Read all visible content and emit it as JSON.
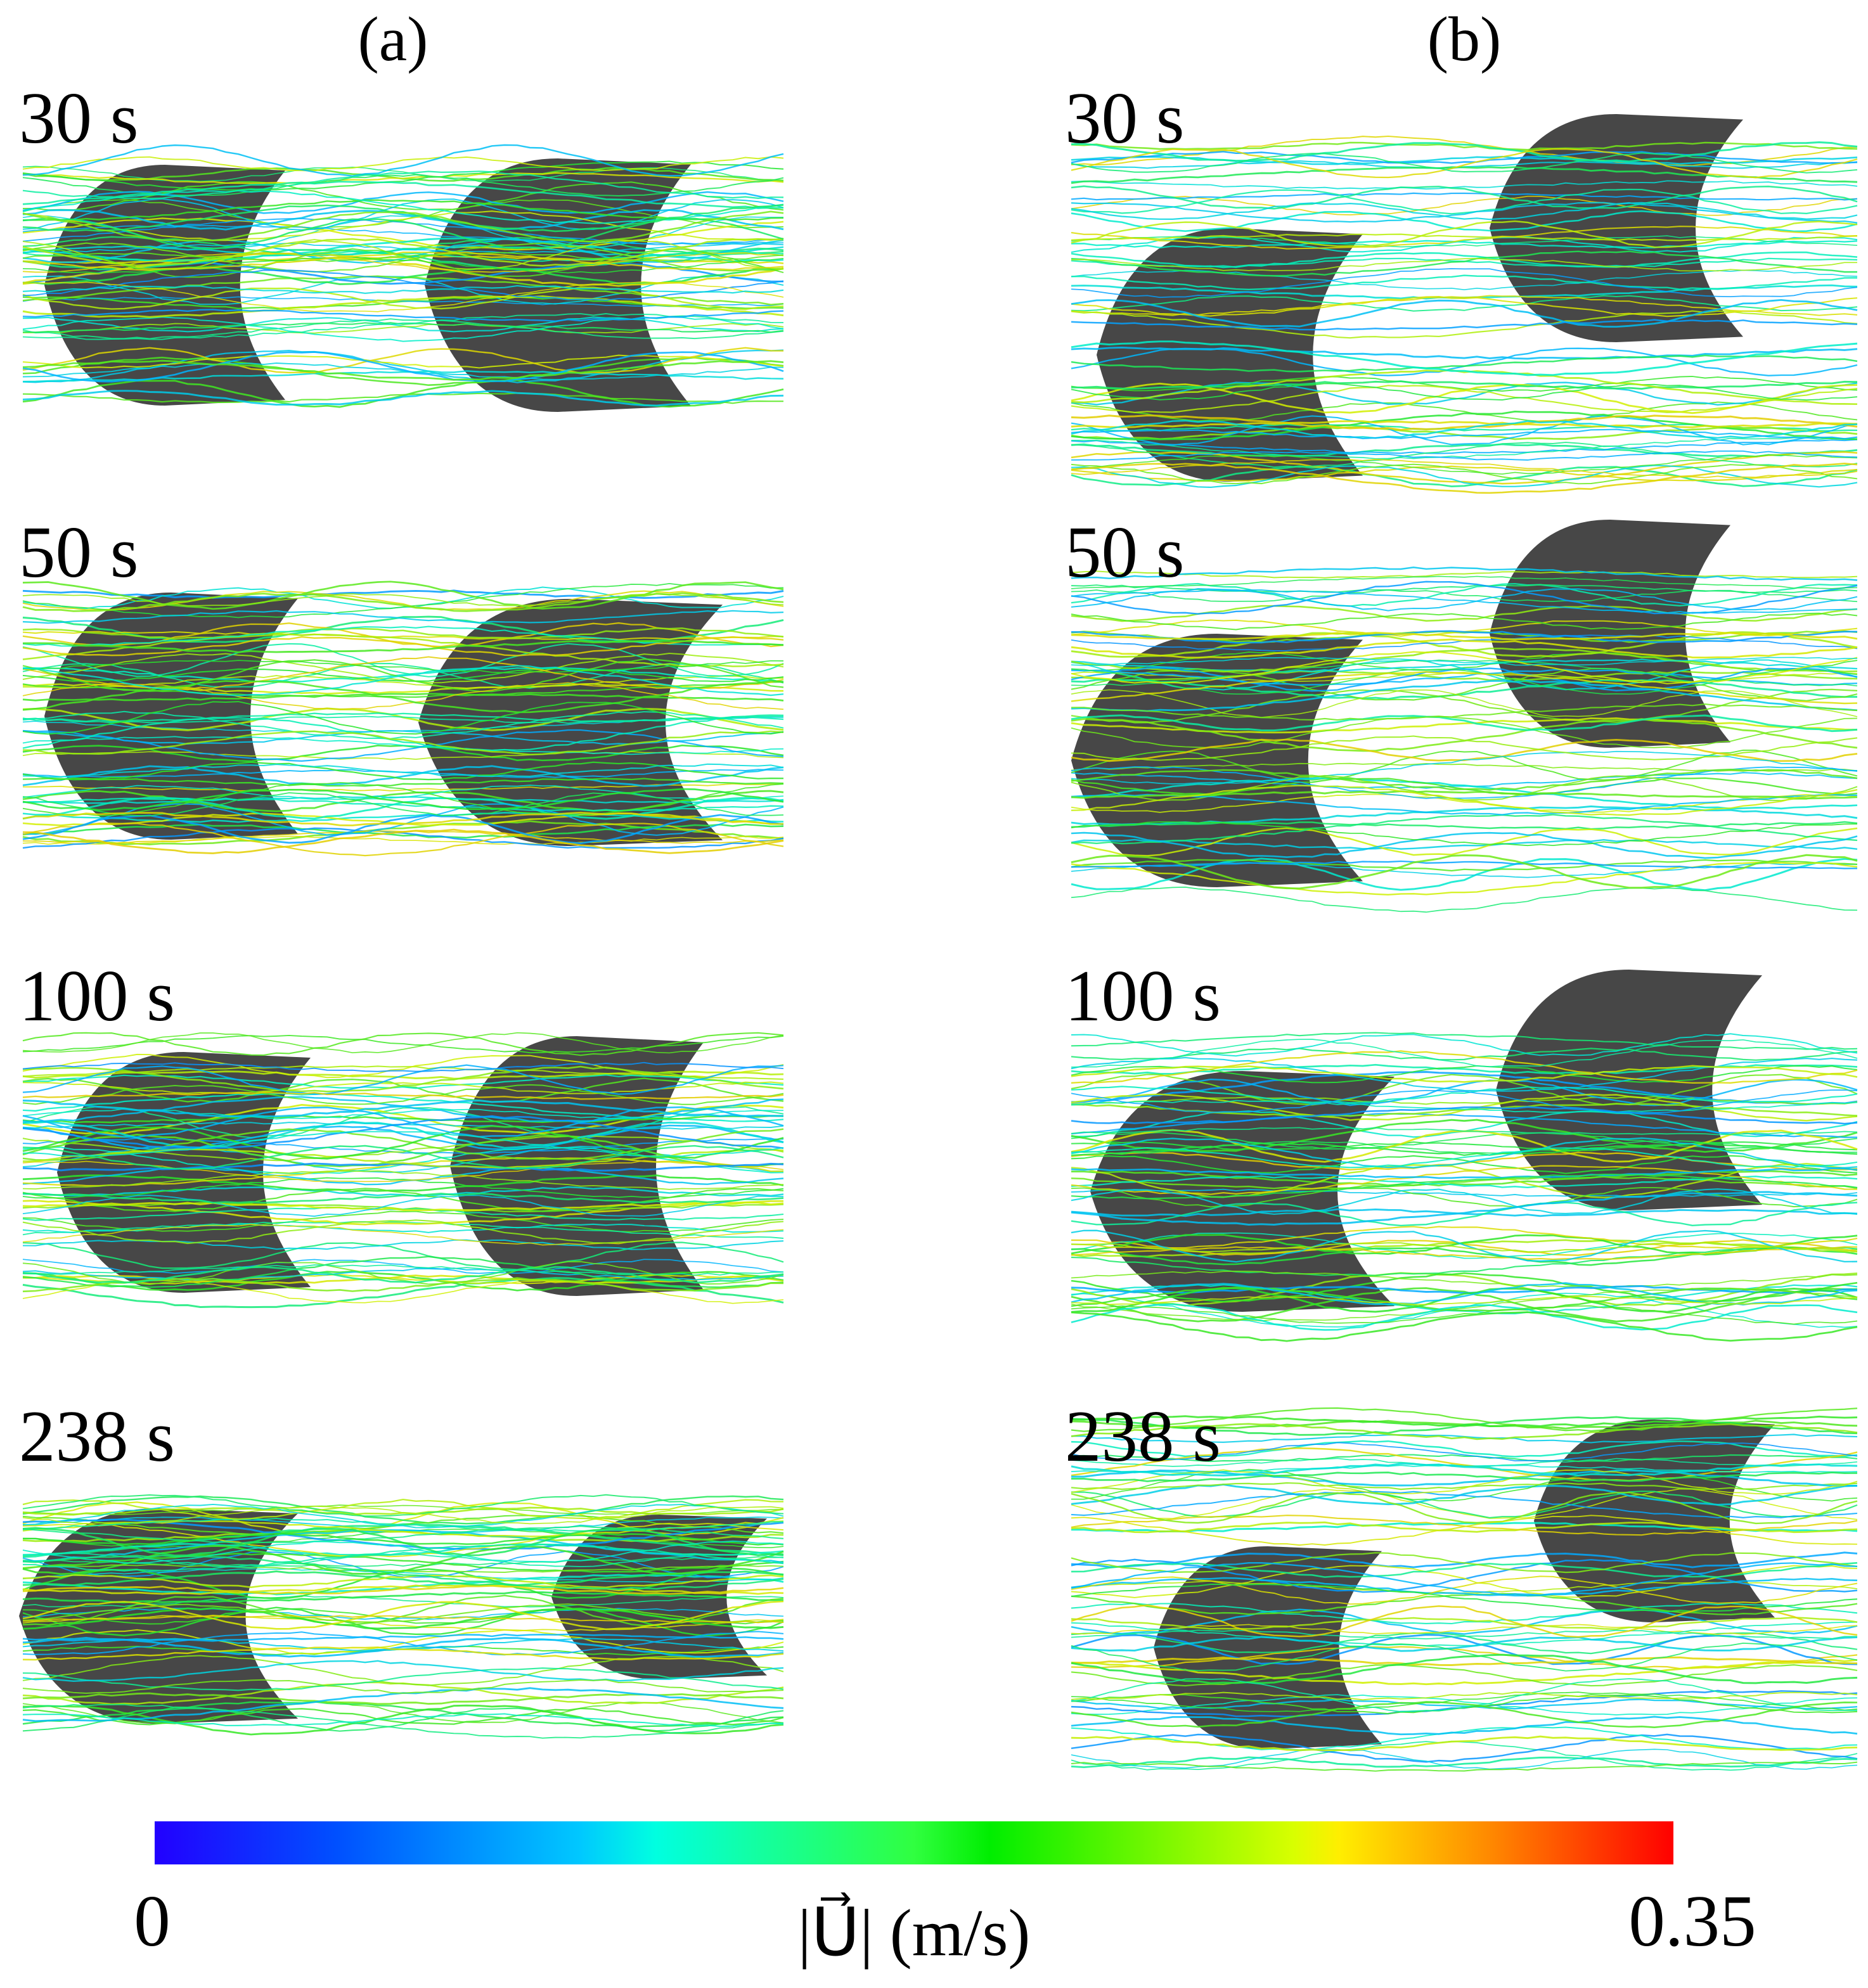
{
  "columns": [
    {
      "label": "(a)",
      "panels": [
        "30 s",
        "50 s",
        "100 s",
        "238 s"
      ]
    },
    {
      "label": "(b)",
      "panels": [
        "30 s",
        "50 s",
        "100 s",
        "238 s"
      ]
    }
  ],
  "colorbar": {
    "min": 0,
    "max": 0.35,
    "label": "|U⃗| (m/s)"
  }
}
